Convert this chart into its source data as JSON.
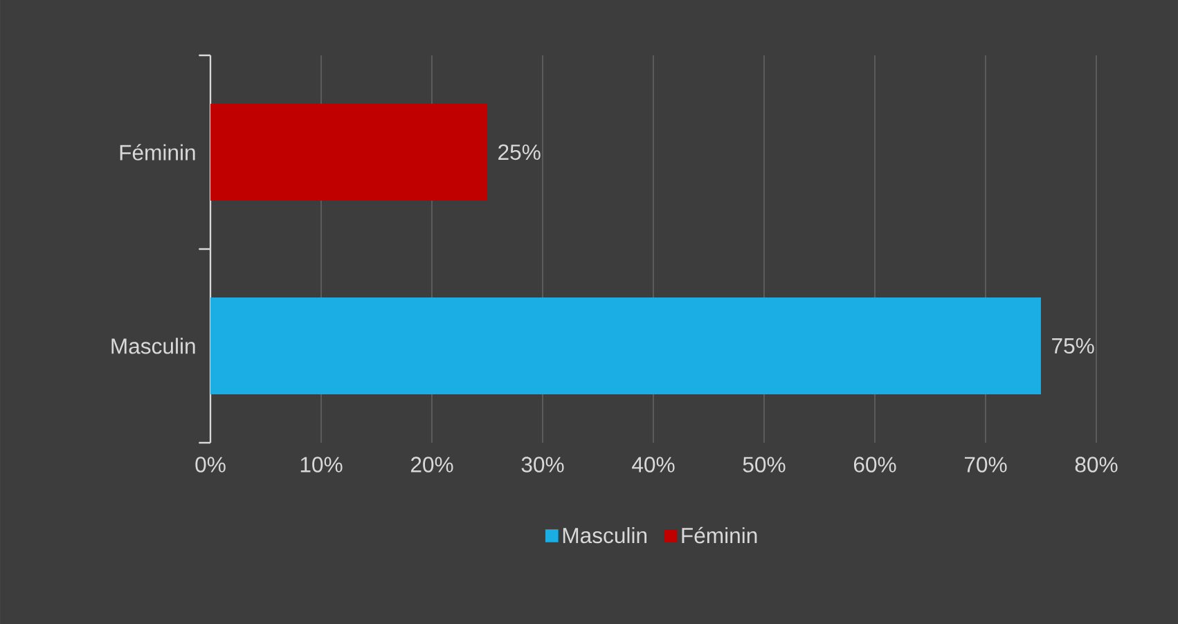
{
  "chart_data": {
    "type": "bar",
    "orientation": "horizontal",
    "categories": [
      "Féminin",
      "Masculin"
    ],
    "series": [
      {
        "name": "Masculin",
        "color": "#1aaee5",
        "values": [
          null,
          75
        ],
        "value_labels": [
          null,
          "75%"
        ]
      },
      {
        "name": "Féminin",
        "color": "#c00000",
        "values": [
          25,
          null
        ],
        "value_labels": [
          "25%",
          null
        ]
      }
    ],
    "xlim": [
      0,
      80
    ],
    "xticks": [
      {
        "value": 0,
        "label": "0%"
      },
      {
        "value": 10,
        "label": "10%"
      },
      {
        "value": 20,
        "label": "20%"
      },
      {
        "value": 30,
        "label": "30%"
      },
      {
        "value": 40,
        "label": "40%"
      },
      {
        "value": 50,
        "label": "50%"
      },
      {
        "value": 60,
        "label": "60%"
      },
      {
        "value": 70,
        "label": "70%"
      },
      {
        "value": 80,
        "label": "80%"
      }
    ],
    "grid": "x",
    "legend": "bottom"
  }
}
